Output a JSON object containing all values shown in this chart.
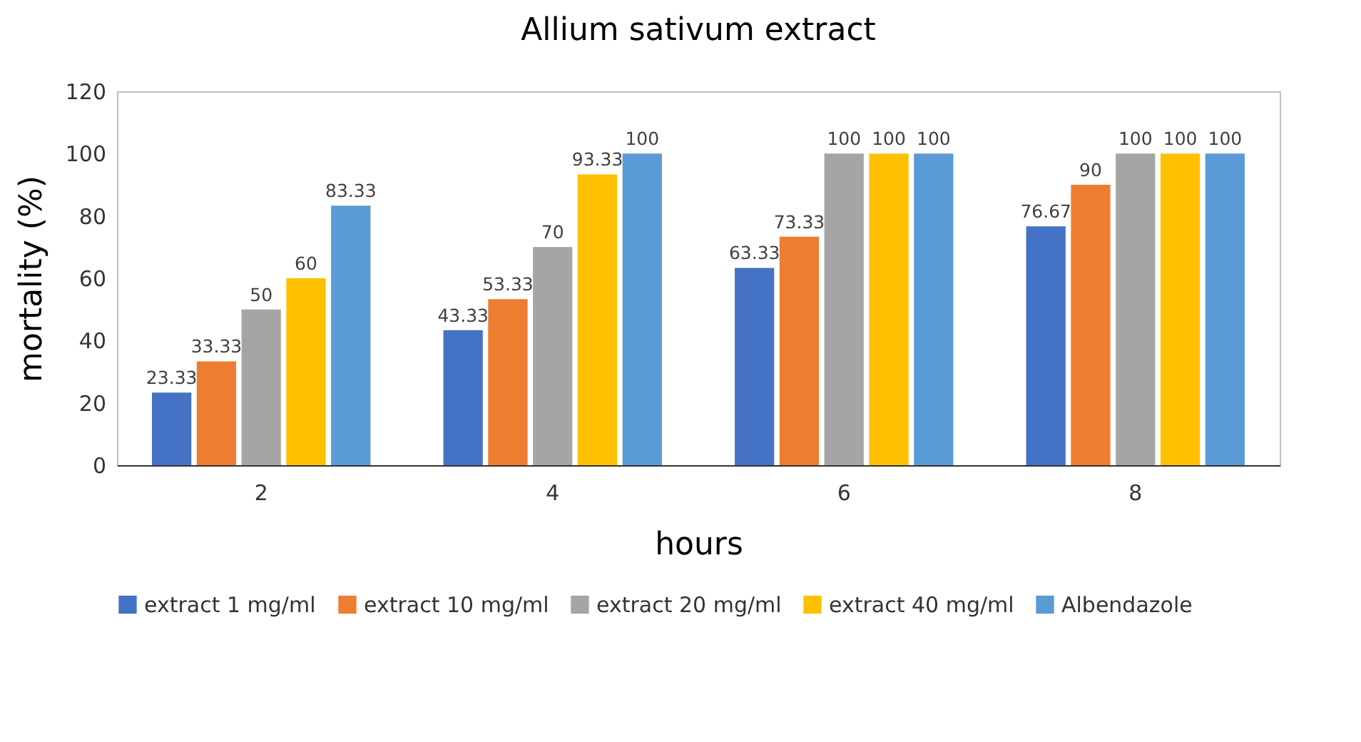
{
  "chart_data": {
    "type": "bar",
    "title": "Allium sativum extract",
    "xlabel": "hours",
    "ylabel": "mortality (%)",
    "categories": [
      "2",
      "4",
      "6",
      "8"
    ],
    "series": [
      {
        "name": "extract 1 mg/ml",
        "color": "#4472c4",
        "values": [
          23.33,
          43.33,
          63.33,
          76.67
        ]
      },
      {
        "name": "extract 10 mg/ml",
        "color": "#ed7d31",
        "values": [
          33.33,
          53.33,
          73.33,
          90
        ]
      },
      {
        "name": "extract 20 mg/ml",
        "color": "#a5a5a5",
        "values": [
          50,
          70,
          100,
          100
        ]
      },
      {
        "name": "extract 40 mg/ml",
        "color": "#ffc000",
        "values": [
          60,
          93.33,
          100,
          100
        ]
      },
      {
        "name": "Albendazole",
        "color": "#5b9bd5",
        "values": [
          83.33,
          100,
          100,
          100
        ]
      }
    ],
    "ylim": [
      0,
      120
    ],
    "yticks": [
      0,
      20,
      40,
      60,
      80,
      100,
      120
    ],
    "grid": false,
    "legend": "bottom",
    "data_labels": true
  }
}
